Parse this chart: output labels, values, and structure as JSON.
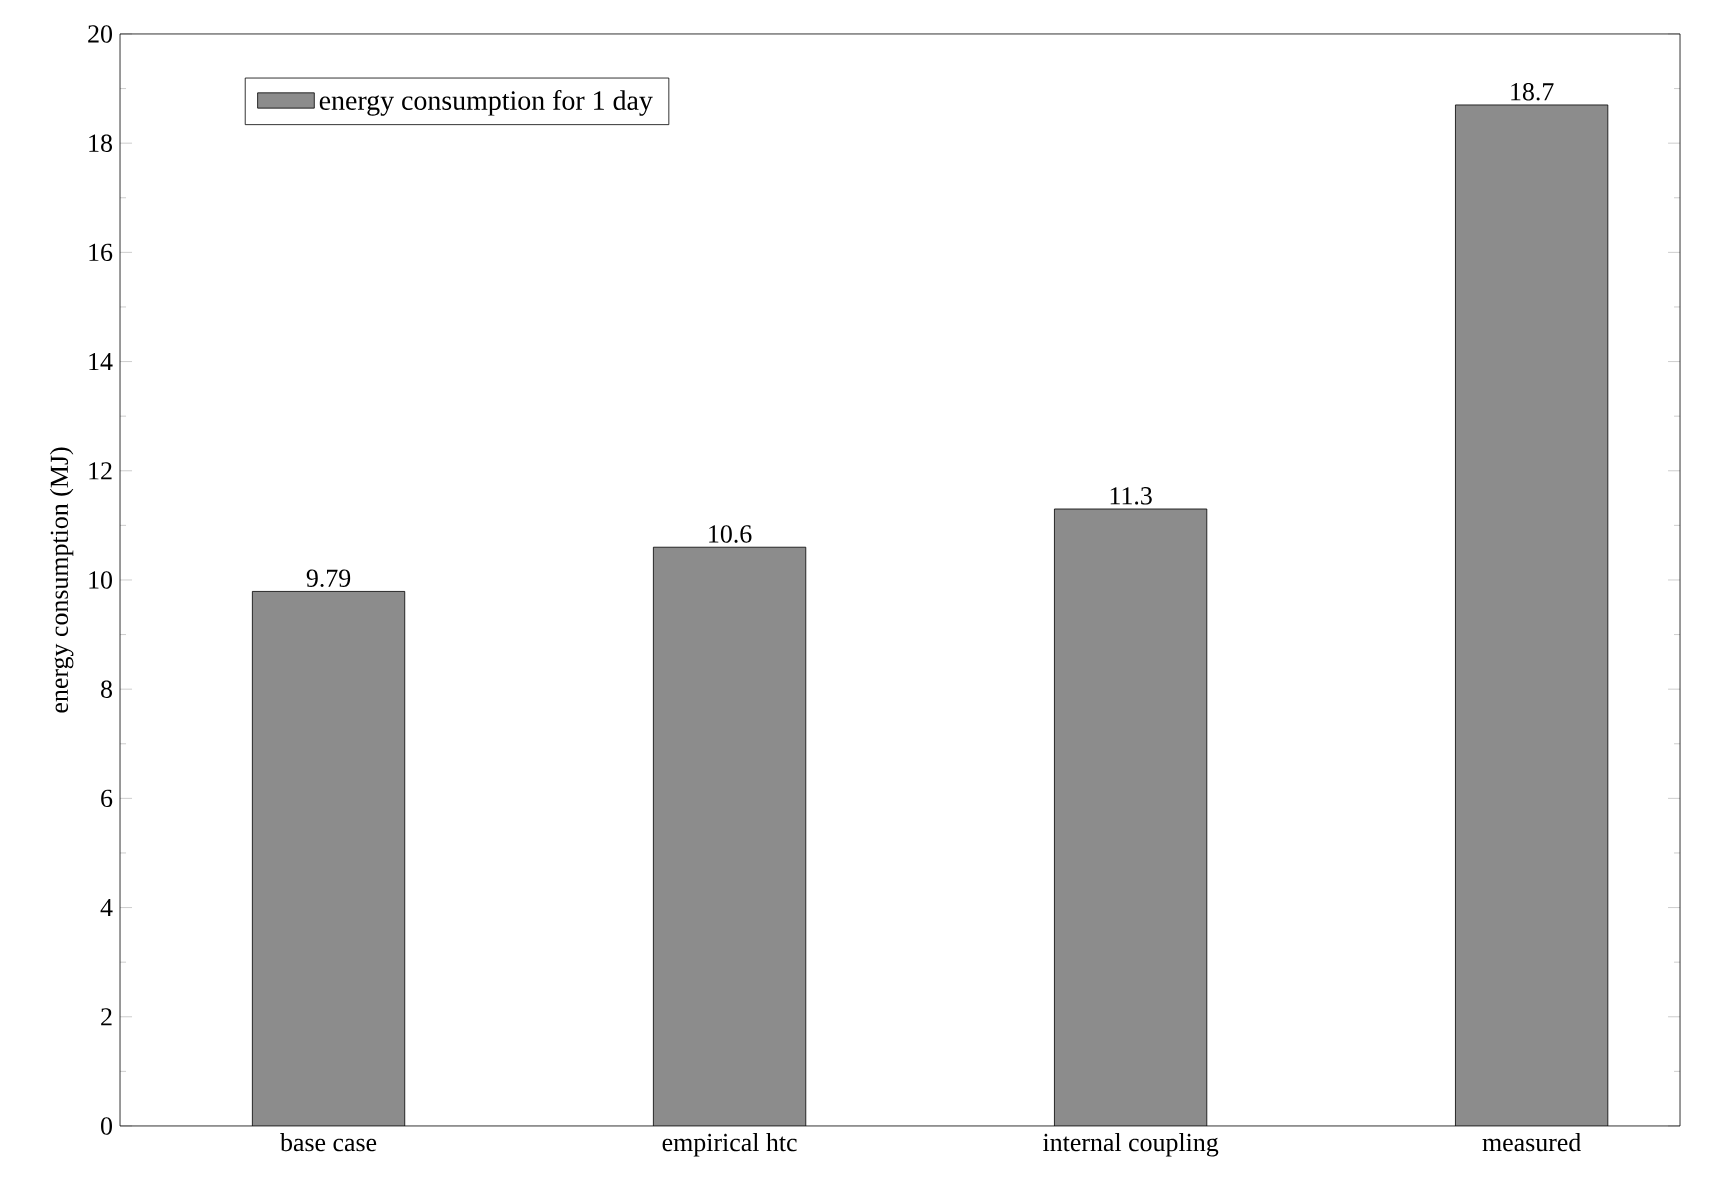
{
  "chart_data": {
    "type": "bar",
    "ylabel": "energy consumption (MJ)",
    "categories": [
      "base case",
      "empirical htc",
      "internal coupling",
      "measured"
    ],
    "series": [
      {
        "name": "energy consumption for 1 day",
        "color": "#8c8c8c",
        "values": [
          9.79,
          10.6,
          11.3,
          18.7
        ]
      }
    ],
    "ylim": [
      0,
      20
    ],
    "yticks": [
      0,
      2,
      4,
      6,
      8,
      10,
      12,
      14,
      16,
      18,
      20
    ],
    "data_labels": true,
    "legend": "top left",
    "grid": false
  }
}
